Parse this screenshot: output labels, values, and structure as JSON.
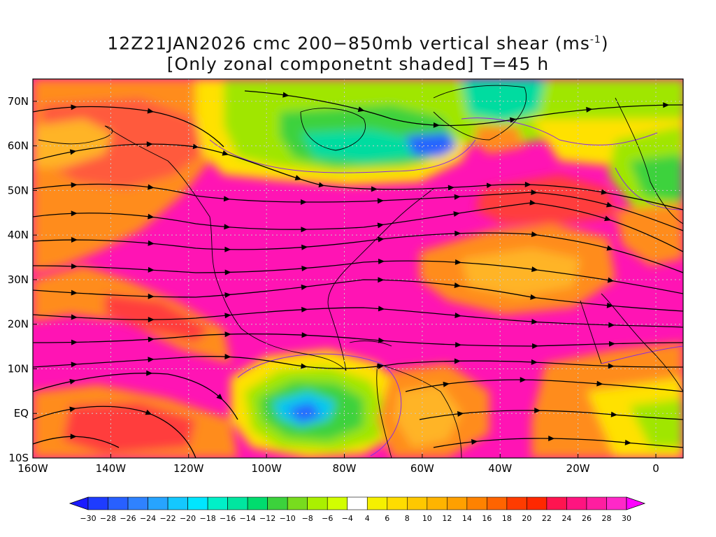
{
  "title": {
    "line1_pre": "12Z21JAN2026 cmc 200−850mb vertical shear (ms",
    "line1_sup": "-1",
    "line1_post": ")",
    "line2": "[Only zonal componetnt shaded] T=45 h"
  },
  "map": {
    "lat_labels": [
      "70N",
      "60N",
      "50N",
      "40N",
      "30N",
      "20N",
      "10N",
      "EQ",
      "10S"
    ],
    "lat_values": [
      70,
      60,
      50,
      40,
      30,
      20,
      10,
      0,
      -10
    ],
    "lon_labels": [
      "160W",
      "140W",
      "120W",
      "100W",
      "80W",
      "60W",
      "40W",
      "20W",
      "0"
    ],
    "lon_values": [
      -160,
      -140,
      -120,
      -100,
      -80,
      -60,
      -40,
      -20,
      0
    ],
    "lon_range": [
      -160,
      7
    ],
    "lat_range": [
      -10,
      75
    ]
  },
  "colorbar": {
    "labels": [
      "-30",
      "-28",
      "-26",
      "-24",
      "-22",
      "-20",
      "-18",
      "-16",
      "-14",
      "-12",
      "-10",
      "-8",
      "-6",
      "-4",
      "4",
      "6",
      "8",
      "10",
      "12",
      "14",
      "16",
      "18",
      "20",
      "22",
      "24",
      "26",
      "28",
      "30"
    ],
    "colors": [
      "#1a1aff",
      "#1e3cff",
      "#2860ff",
      "#2f82ff",
      "#27a4ff",
      "#14c8ff",
      "#00e6ff",
      "#00f0c8",
      "#00e6a0",
      "#00dc6e",
      "#3cd23c",
      "#78dc1e",
      "#aaf000",
      "#d2ff00",
      "#ffffff",
      "#f5f000",
      "#ffdc00",
      "#ffc800",
      "#ffb400",
      "#ffa000",
      "#ff8200",
      "#ff6400",
      "#ff3c00",
      "#ff2800",
      "#ff1450",
      "#ff1480",
      "#ff1ea0",
      "#ff28c8",
      "#ff00ff"
    ]
  },
  "shading_colors": {
    "magenta": "#ff14b4",
    "hotpink": "#ff1e8c",
    "red": "#ff3c3c",
    "orange": "#ff8c1e",
    "lightorange": "#ffb428",
    "yellow": "#ffe100",
    "white": "#ffffff",
    "lime": "#a0e600",
    "green": "#3cd23c",
    "teal": "#00dca0",
    "cyan": "#00c8f0",
    "blue": "#2864ff"
  }
}
